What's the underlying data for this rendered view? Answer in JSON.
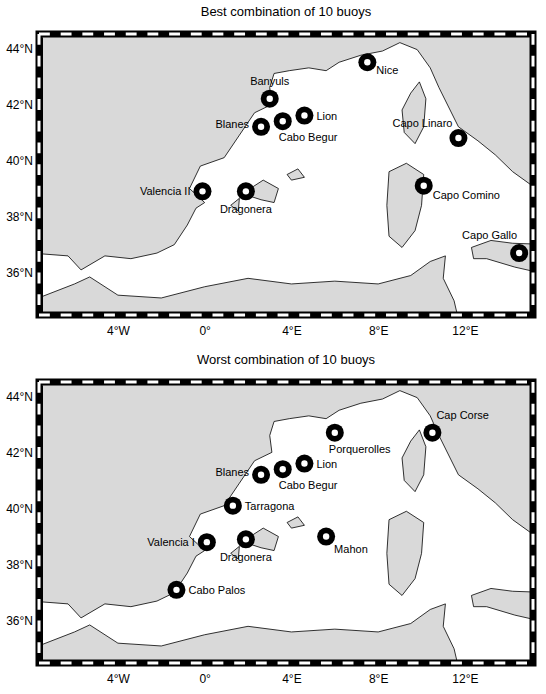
{
  "chart_data": [
    {
      "type": "scatter",
      "title": "Best combination of 10 buoys",
      "marker": "circle",
      "labels": [
        "Nice",
        "Banyuls",
        "Blanes",
        "Cabo Begur",
        "Lion",
        "Capo Linaro",
        "Capo Comino",
        "Valencia II",
        "Dragonera",
        "Capo Gallo"
      ],
      "x": [
        7.5,
        3.0,
        2.6,
        3.6,
        4.6,
        11.7,
        10.1,
        -0.1,
        1.9,
        14.5
      ],
      "y": [
        43.5,
        42.2,
        41.2,
        41.4,
        41.6,
        40.8,
        39.1,
        38.9,
        38.9,
        36.7
      ],
      "xlim": [
        -7.5,
        15
      ],
      "ylim": [
        34.6,
        44.4
      ],
      "xticks": [
        {
          "value": -4,
          "label": "4°W"
        },
        {
          "value": 0,
          "label": "0°"
        },
        {
          "value": 4,
          "label": "4°E"
        },
        {
          "value": 8,
          "label": "8°E"
        },
        {
          "value": 12,
          "label": "12°E"
        }
      ],
      "yticks": [
        {
          "value": 36,
          "label": "36°N"
        },
        {
          "value": 38,
          "label": "38°N"
        },
        {
          "value": 40,
          "label": "40°N"
        },
        {
          "value": 42,
          "label": "42°N"
        },
        {
          "value": 44,
          "label": "44°N"
        }
      ]
    },
    {
      "type": "scatter",
      "title": "Worst combination of 10 buoys",
      "marker": "circle",
      "labels": [
        "Porquerolles",
        "Cap Corse",
        "Blanes",
        "Cabo Begur",
        "Lion",
        "Tarragona",
        "Valencia I",
        "Dragonera",
        "Mahon",
        "Cabo Palos"
      ],
      "x": [
        6.0,
        10.5,
        2.6,
        3.6,
        4.6,
        1.3,
        0.1,
        1.9,
        5.6,
        -1.3
      ],
      "y": [
        42.7,
        42.7,
        41.2,
        41.4,
        41.6,
        40.1,
        38.8,
        38.9,
        39.0,
        37.1
      ],
      "xlim": [
        -7.5,
        15
      ],
      "ylim": [
        34.6,
        44.4
      ],
      "xticks": [
        {
          "value": -4,
          "label": "4°W"
        },
        {
          "value": 0,
          "label": "0°"
        },
        {
          "value": 4,
          "label": "4°E"
        },
        {
          "value": 8,
          "label": "8°E"
        },
        {
          "value": 12,
          "label": "12°E"
        }
      ],
      "yticks": [
        {
          "value": 36,
          "label": "36°N"
        },
        {
          "value": 38,
          "label": "38°N"
        },
        {
          "value": 40,
          "label": "40°N"
        },
        {
          "value": 42,
          "label": "42°N"
        },
        {
          "value": 44,
          "label": "44°N"
        }
      ]
    }
  ]
}
